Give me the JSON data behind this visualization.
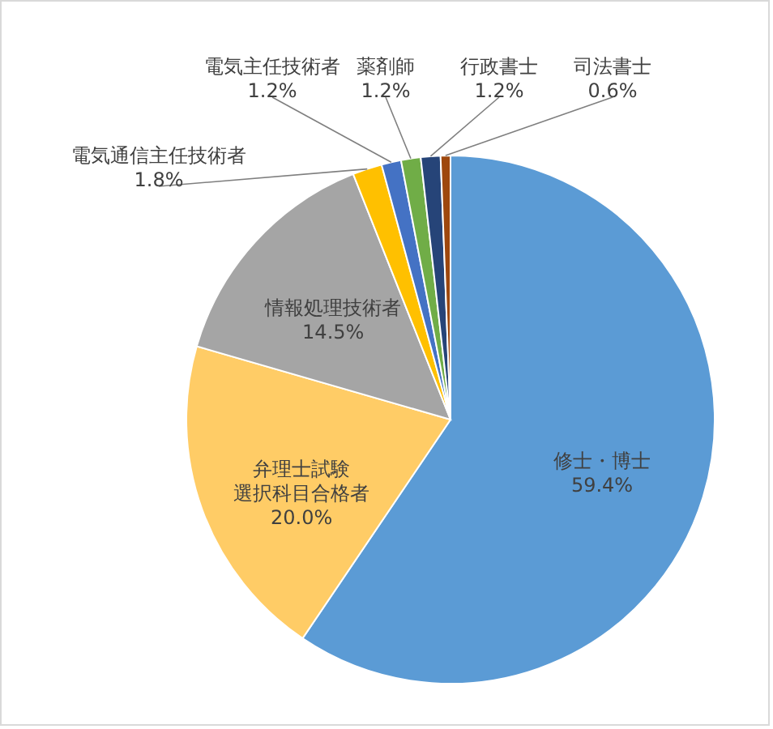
{
  "chart_data": {
    "type": "pie",
    "categories": [
      "修士・博士",
      "弁理士試験選択科目合格者",
      "情報処理技術者",
      "電気通信主任技術者",
      "電気主任技術者",
      "薬剤師",
      "行政書士",
      "司法書士"
    ],
    "values": [
      59.4,
      20.0,
      14.5,
      1.8,
      1.2,
      1.2,
      1.2,
      0.6
    ],
    "colors": [
      "#5b9bd5",
      "#ffcc66",
      "#a5a5a5",
      "#ffc000",
      "#4472c4",
      "#70ad47",
      "#264478",
      "#9e480e"
    ],
    "value_labels": [
      "59.4%",
      "20.0%",
      "14.5%",
      "1.8%",
      "1.2%",
      "1.2%",
      "1.2%",
      "0.6%"
    ]
  }
}
